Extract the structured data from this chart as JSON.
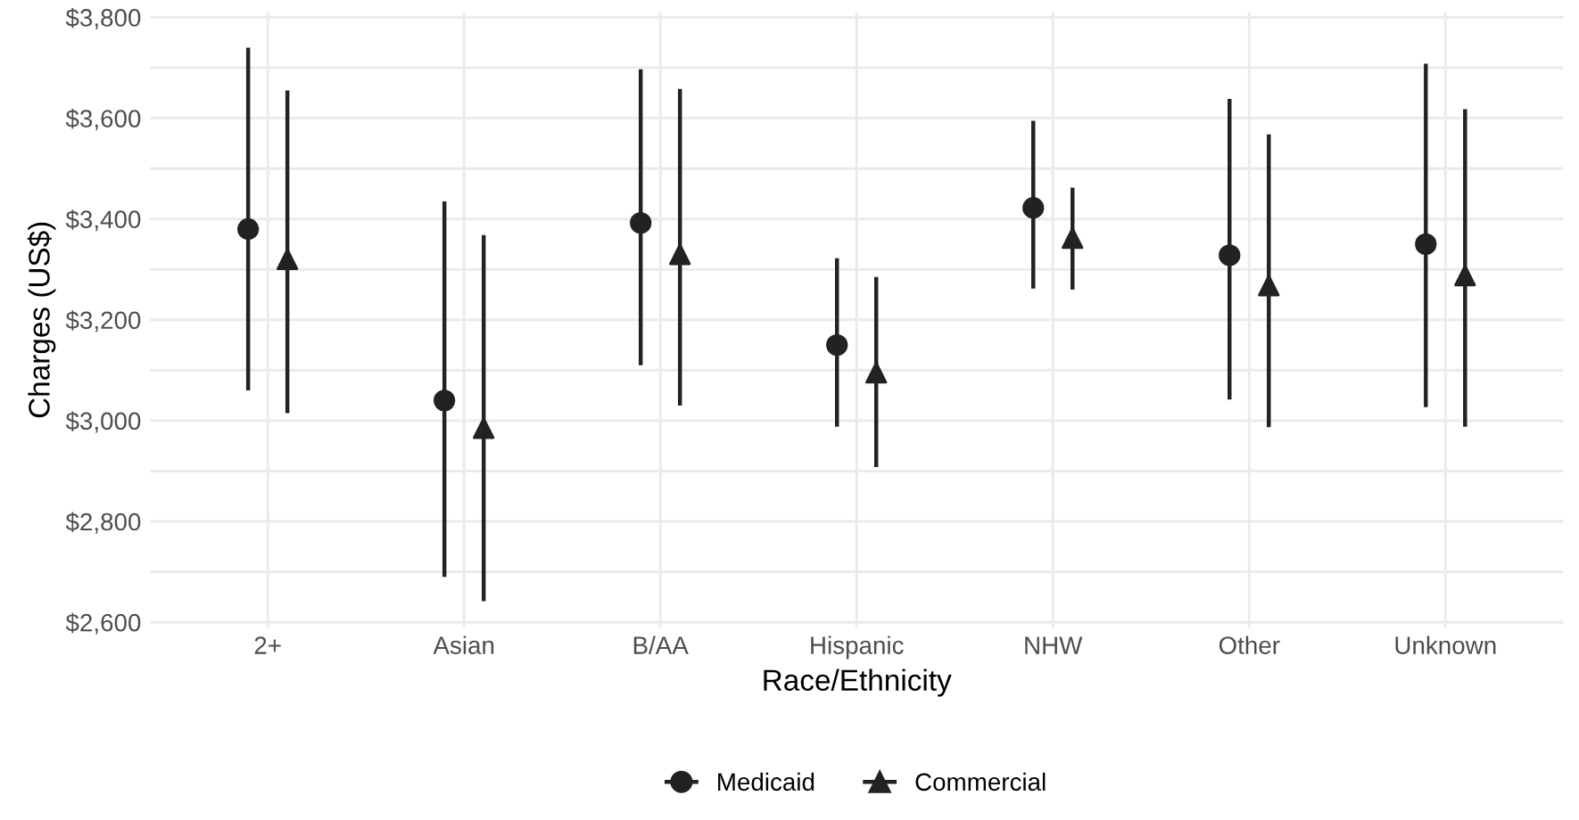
{
  "chart_data": {
    "type": "scatter",
    "xlabel": "Race/Ethnicity",
    "ylabel": "Charges (US$)",
    "categories": [
      "2+",
      "Asian",
      "B/AA",
      "Hispanic",
      "NHW",
      "Other",
      "Unknown"
    ],
    "series": [
      {
        "name": "Medicaid",
        "color": "#222222",
        "marker": "circle",
        "values": [
          3380,
          3040,
          3392,
          3150,
          3422,
          3328,
          3350
        ],
        "errors": [
          [
            3060,
            3740
          ],
          [
            2690,
            3435
          ],
          [
            3110,
            3697
          ],
          [
            2988,
            3322
          ],
          [
            3262,
            3595
          ],
          [
            3042,
            3638
          ],
          [
            3027,
            3708
          ]
        ]
      },
      {
        "name": "Commercial",
        "color": "#222222",
        "marker": "triangle",
        "values": [
          3320,
          2985,
          3330,
          3095,
          3362,
          3268,
          3288
        ],
        "errors": [
          [
            3015,
            3655
          ],
          [
            2642,
            3368
          ],
          [
            3030,
            3658
          ],
          [
            2908,
            3285
          ],
          [
            3260,
            3462
          ],
          [
            2987,
            3568
          ],
          [
            2988,
            3618
          ]
        ]
      }
    ],
    "ylim": [
      2590,
      3810
    ],
    "yticks": [
      {
        "value": 2600,
        "label": "$2,600"
      },
      {
        "value": 2700,
        "label": null
      },
      {
        "value": 2800,
        "label": "$2,800"
      },
      {
        "value": 2900,
        "label": null
      },
      {
        "value": 3000,
        "label": "$3,000"
      },
      {
        "value": 3100,
        "label": null
      },
      {
        "value": 3200,
        "label": "$3,200"
      },
      {
        "value": 3300,
        "label": null
      },
      {
        "value": 3400,
        "label": "$3,400"
      },
      {
        "value": 3500,
        "label": null
      },
      {
        "value": 3600,
        "label": "$3,600"
      },
      {
        "value": 3700,
        "label": null
      },
      {
        "value": 3800,
        "label": "$3,800"
      }
    ],
    "grid": true,
    "legend": "bottom"
  }
}
